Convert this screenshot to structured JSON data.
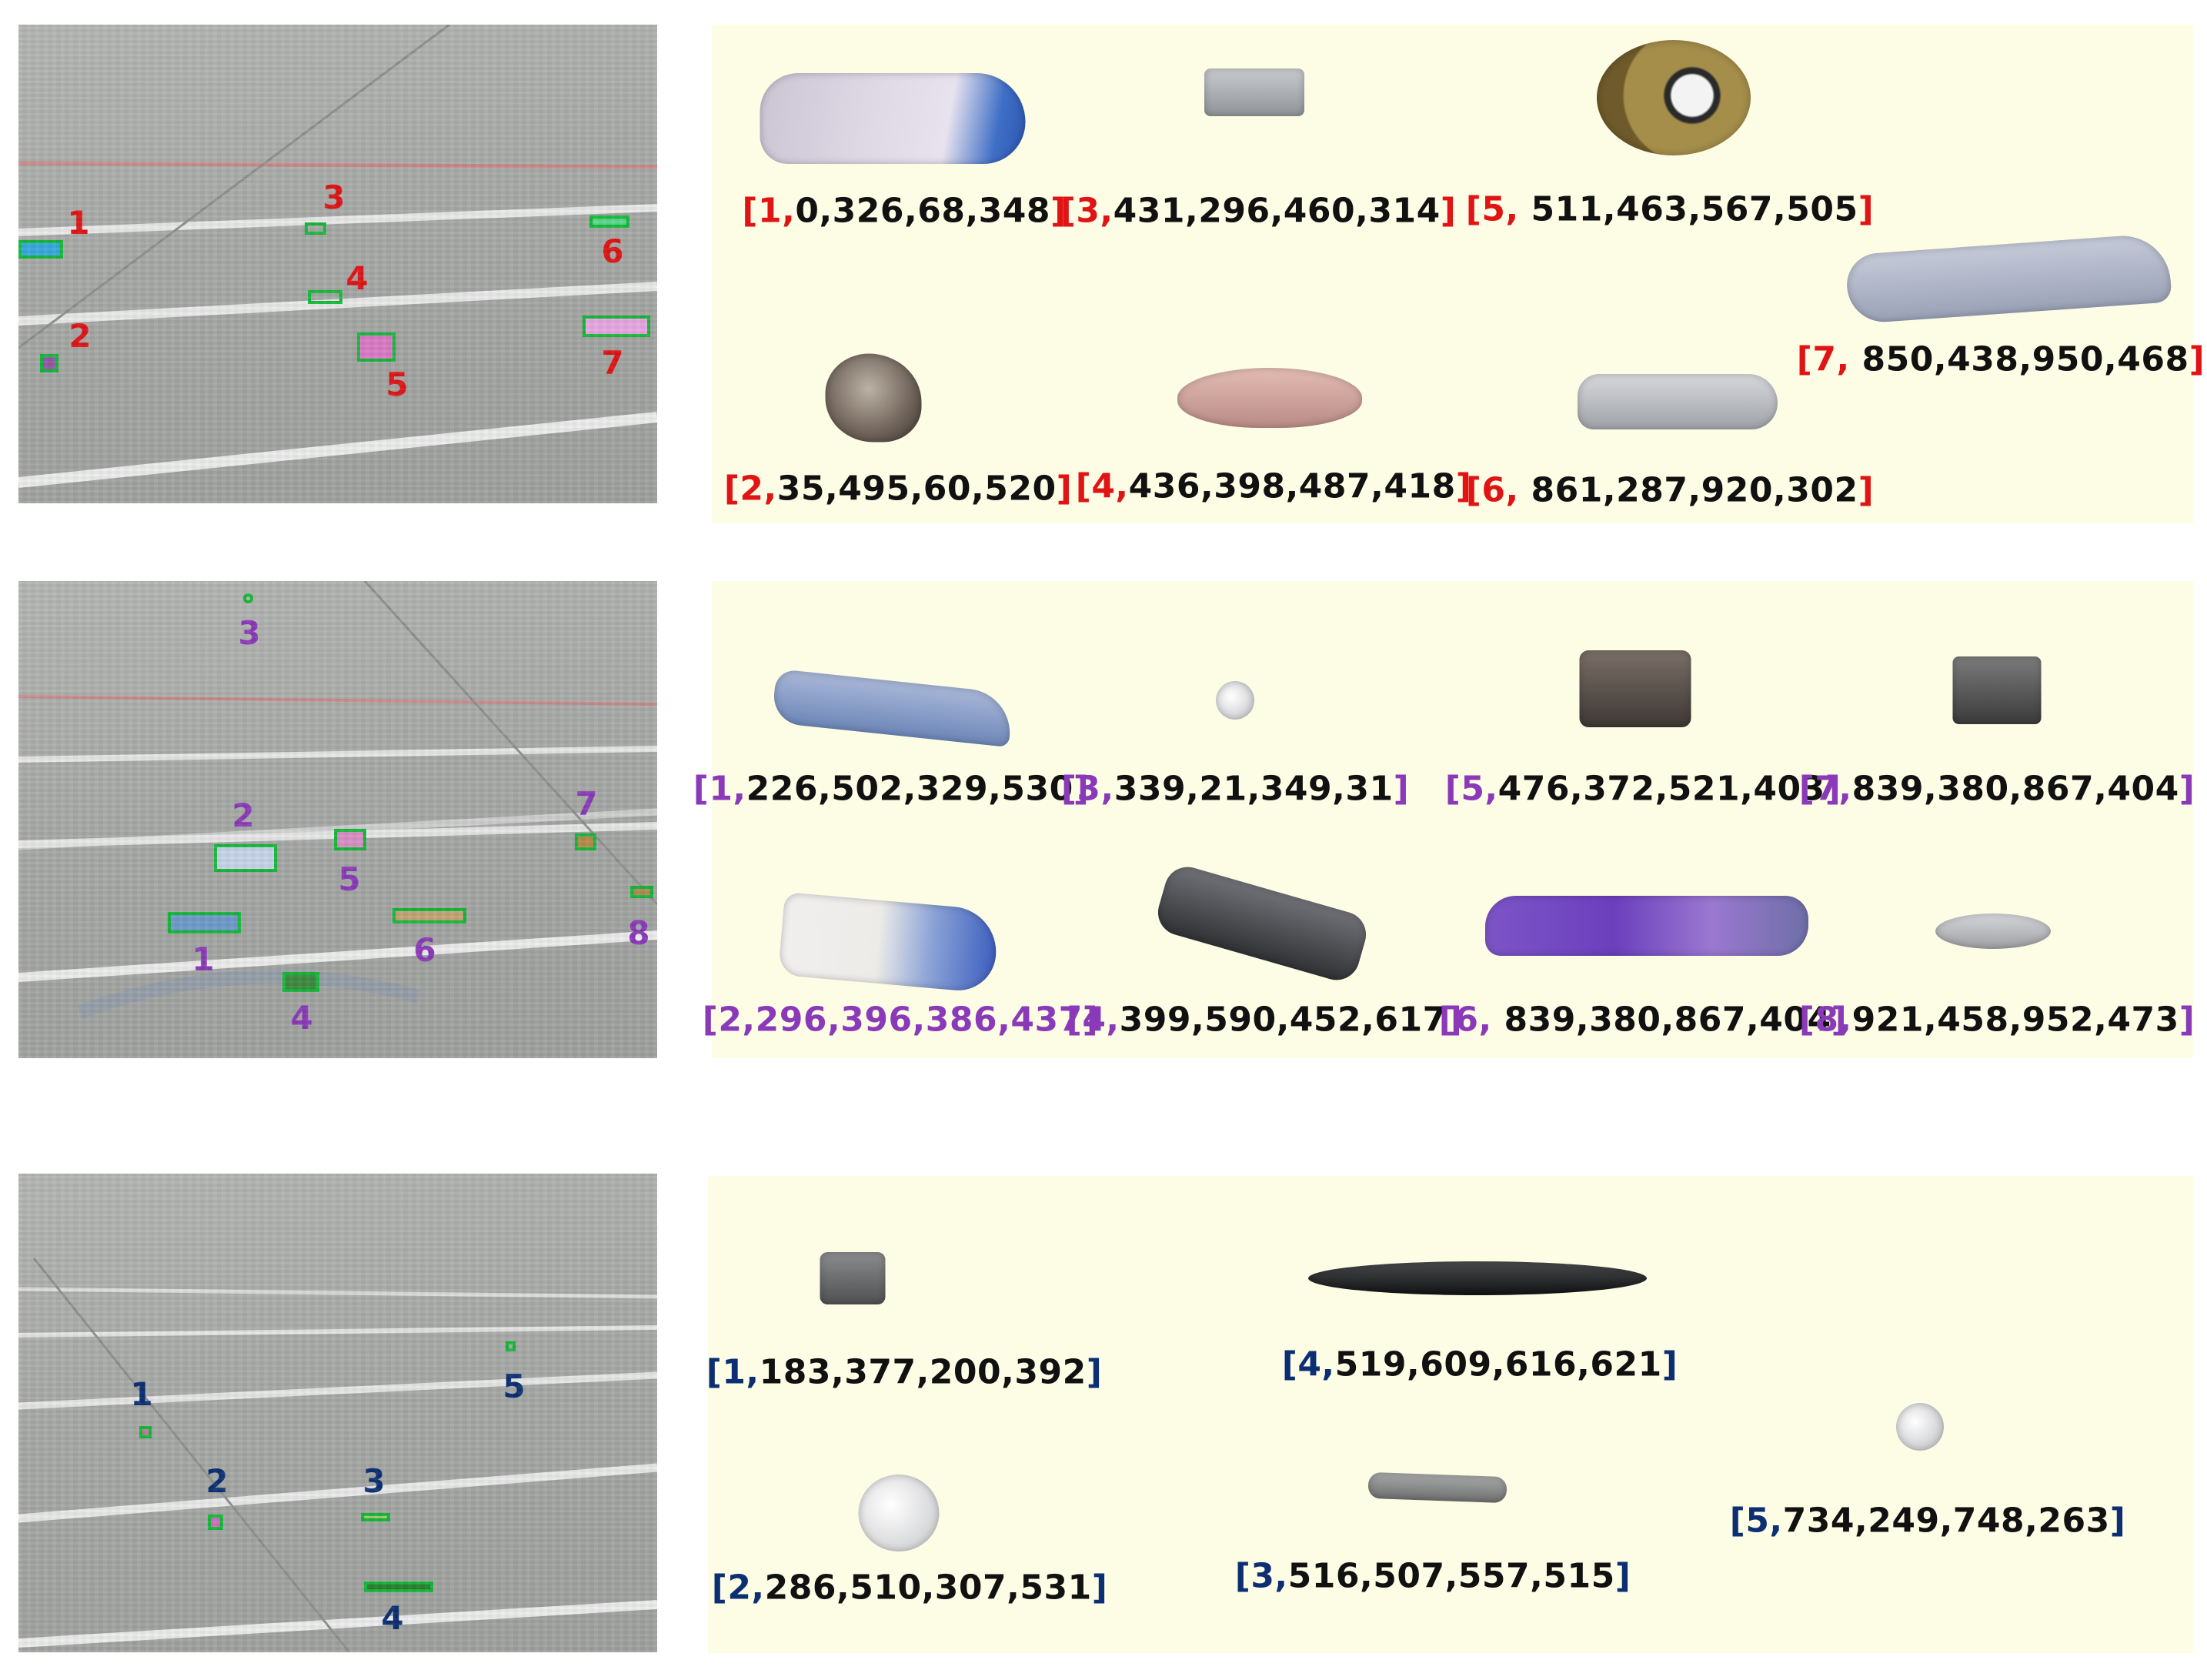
{
  "colors": {
    "row1": "#e01414",
    "row2": "#8a3ab8",
    "row3": "#0c2f73",
    "box": "#16b83a"
  },
  "rows": [
    {
      "markers": [
        "1",
        "2",
        "3",
        "4",
        "5",
        "6",
        "7"
      ],
      "labels": [
        {
          "open": "[",
          "id": "1,",
          "coords": "0,326,68,348",
          "close": "]"
        },
        {
          "open": "[",
          "id": "3,",
          "coords": "431,296,460,314",
          "close": "]"
        },
        {
          "open": "[",
          "id": "5,",
          "coords": " 511,463,567,505",
          "close": "]"
        },
        {
          "open": "[",
          "id": "7,",
          "coords": " 850,438,950,468",
          "close": "]"
        },
        {
          "open": "[",
          "id": "2,",
          "coords": "35,495,60,520",
          "close": "]"
        },
        {
          "open": "[",
          "id": "4,",
          "coords": "436,398,487,418",
          "close": "]"
        },
        {
          "open": "[",
          "id": "6,",
          "coords": " 861,287,920,302",
          "close": "]"
        }
      ]
    },
    {
      "markers": [
        "1",
        "2",
        "3",
        "4",
        "5",
        "6",
        "7",
        "8"
      ],
      "labels": [
        {
          "open": "[",
          "id": "1,",
          "coords": "226,502,329,530",
          "close": "]"
        },
        {
          "open": "[",
          "id": "3,",
          "coords": "339,21,349,31",
          "close": "]"
        },
        {
          "open": "[",
          "id": "5,",
          "coords": "476,372,521,403",
          "close": "]"
        },
        {
          "open": "[",
          "id": "7,",
          "coords": "839,380,867,404",
          "close": "]"
        },
        {
          "open": "[",
          "id": "2,296,396,386,437",
          "coords": "",
          "close": "]"
        },
        {
          "open": "[",
          "id": "4,",
          "coords": "399,590,452,617",
          "close": "]"
        },
        {
          "open": "[",
          "id": "6,",
          "coords": " 839,380,867,404",
          "close": "]"
        },
        {
          "open": "[",
          "id": "8,",
          "coords": "921,458,952,473",
          "close": "]"
        }
      ]
    },
    {
      "markers": [
        "1",
        "2",
        "3",
        "4",
        "5"
      ],
      "labels": [
        {
          "open": "[",
          "id": "1,",
          "coords": "183,377,200,392",
          "close": "]"
        },
        {
          "open": "[",
          "id": "4,",
          "coords": "519,609,616,621",
          "close": "]"
        },
        {
          "open": "[",
          "id": "5,",
          "coords": "734,249,748,263",
          "close": "]"
        },
        {
          "open": "[",
          "id": "2,",
          "coords": "286,510,307,531",
          "close": "]"
        },
        {
          "open": "[",
          "id": "3,",
          "coords": "516,507,557,515",
          "close": "]"
        }
      ]
    }
  ]
}
